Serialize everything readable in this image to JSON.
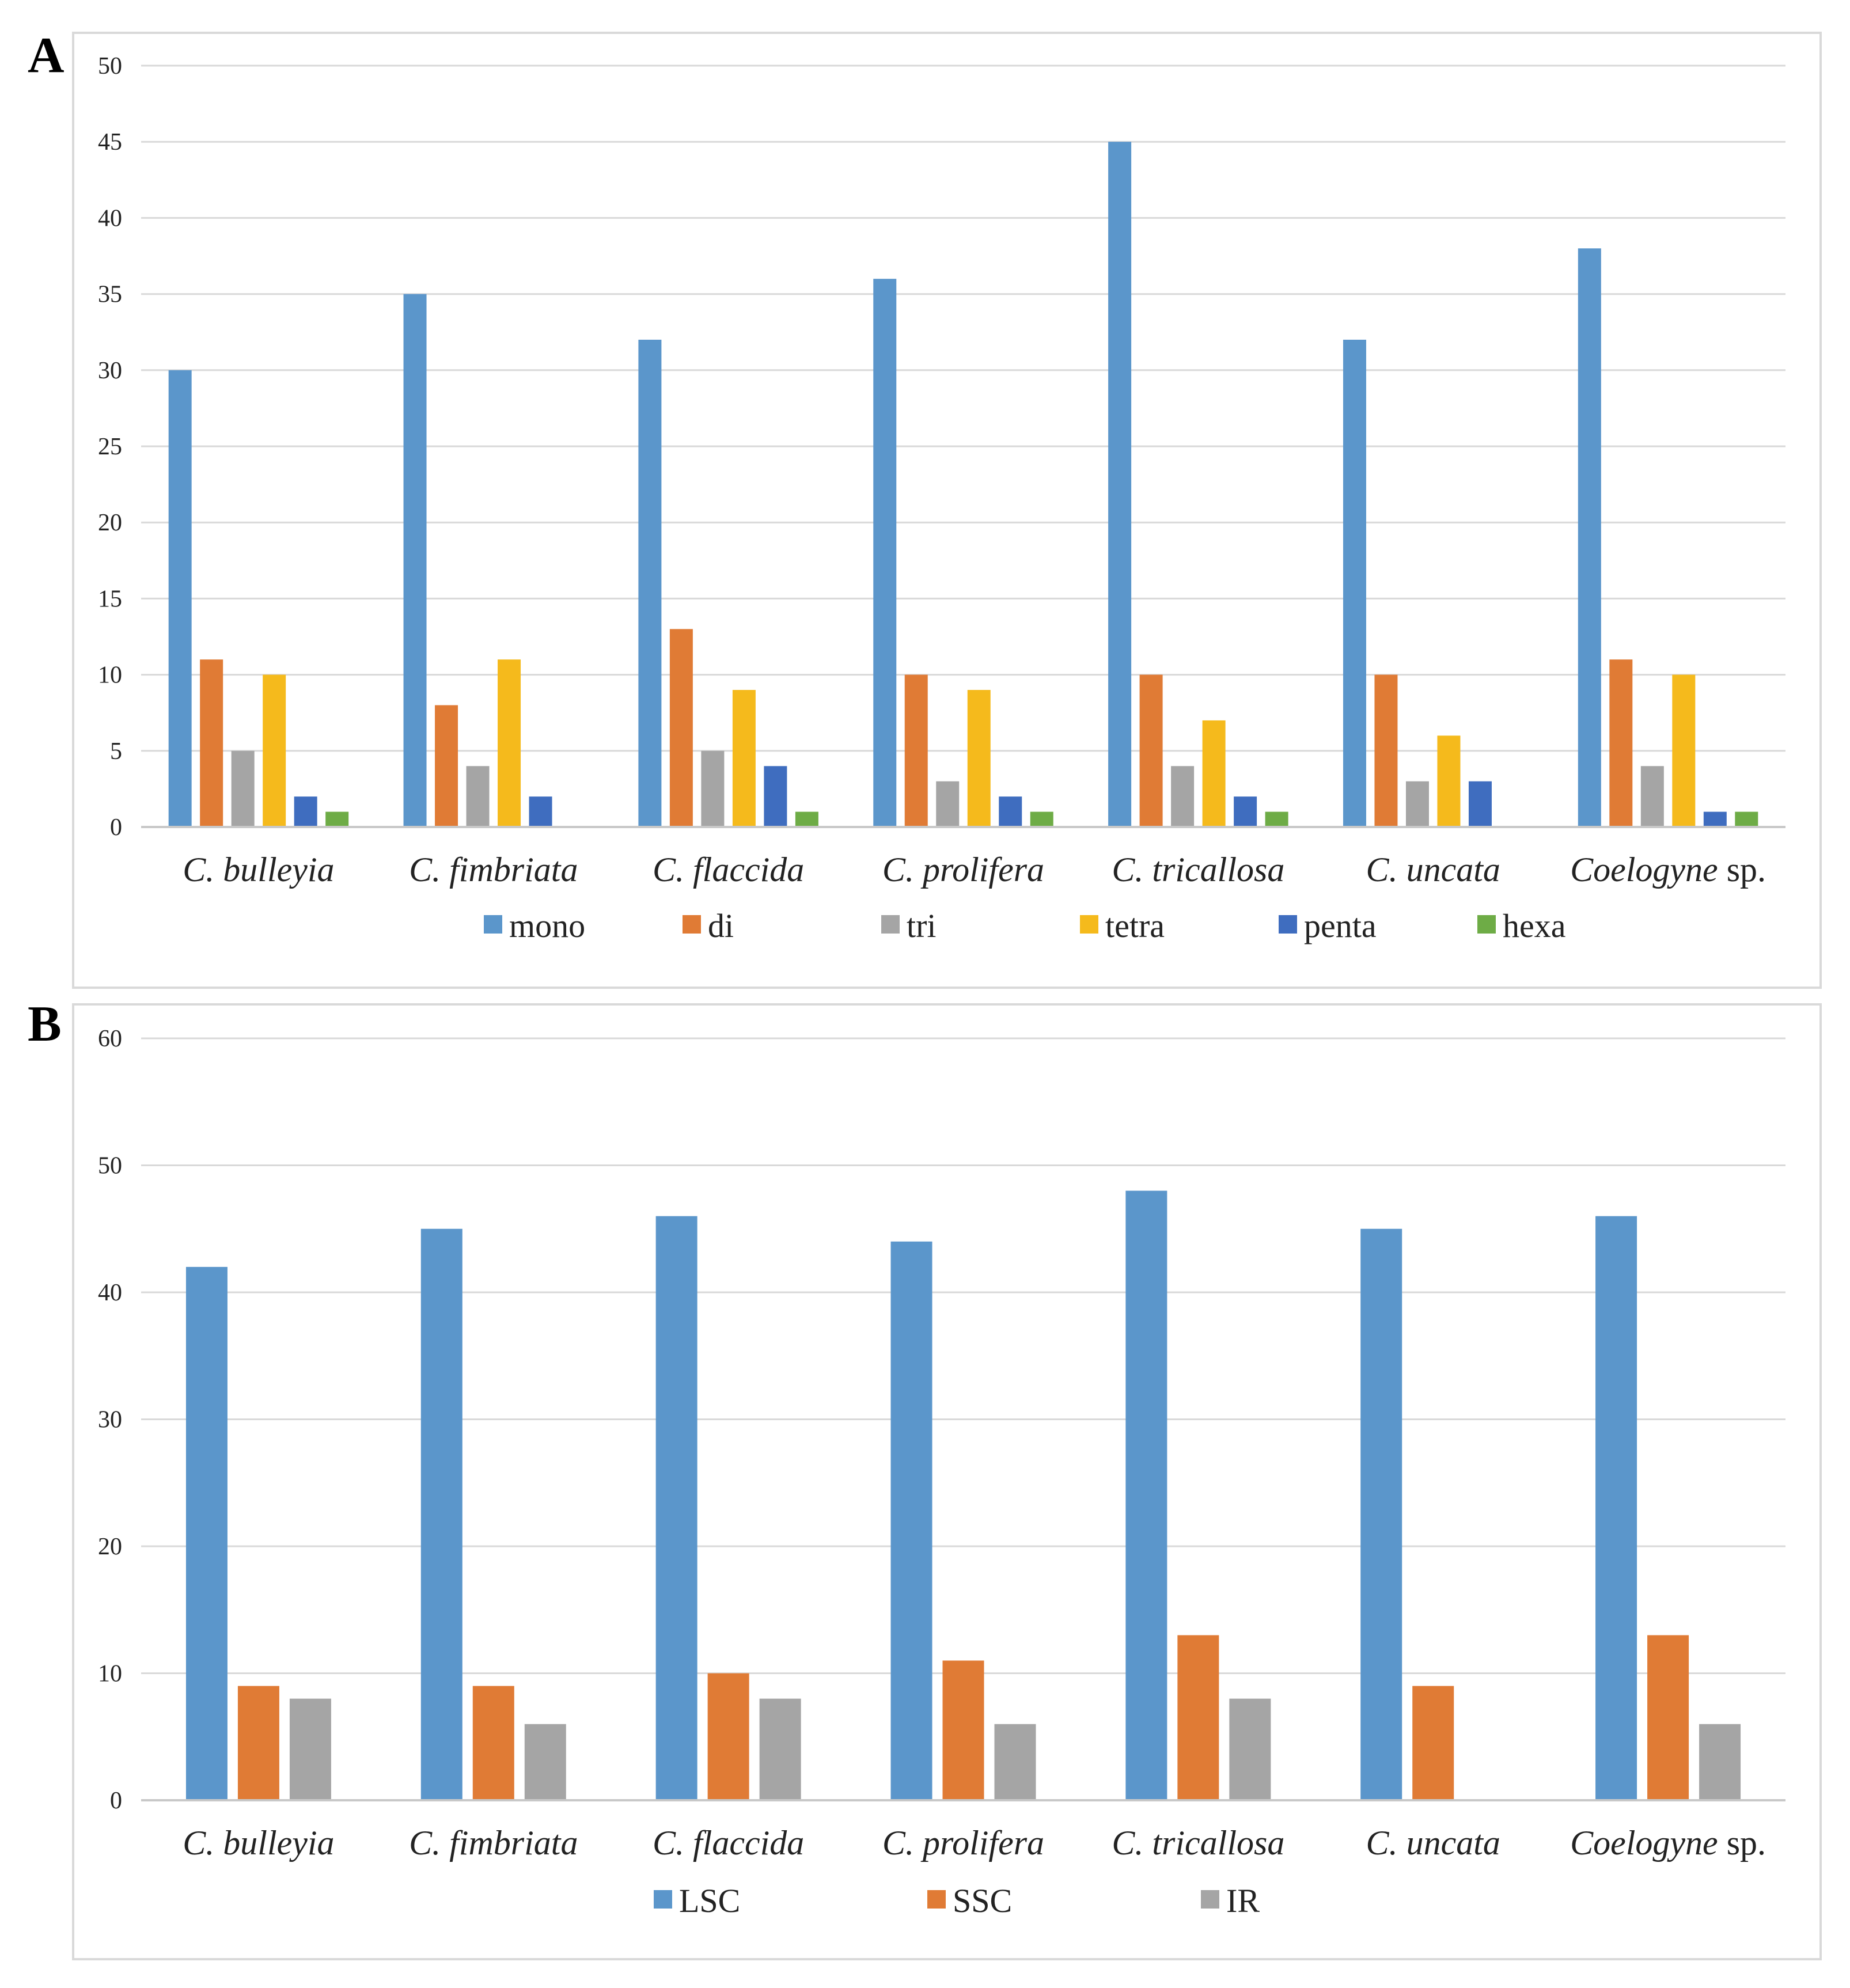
{
  "chart_data": [
    {
      "panel_label": "A",
      "type": "bar",
      "categories": [
        {
          "italic": "C. bulleyia",
          "plain": ""
        },
        {
          "italic": "C. fimbriata",
          "plain": ""
        },
        {
          "italic": "C. flaccida",
          "plain": ""
        },
        {
          "italic": "C. prolifera",
          "plain": ""
        },
        {
          "italic": "C. tricallosa",
          "plain": ""
        },
        {
          "italic": "C. uncata",
          "plain": ""
        },
        {
          "italic": "Coelogyne",
          "plain": " sp."
        }
      ],
      "series": [
        {
          "name": "mono",
          "color": "#5B96CB",
          "values": [
            30,
            35,
            32,
            36,
            45,
            32,
            38
          ]
        },
        {
          "name": "di",
          "color": "#E07B35",
          "values": [
            11,
            8,
            13,
            10,
            10,
            10,
            11
          ]
        },
        {
          "name": "tri",
          "color": "#A5A5A5",
          "values": [
            5,
            4,
            5,
            3,
            4,
            3,
            4
          ]
        },
        {
          "name": "tetra",
          "color": "#F5BA1C",
          "values": [
            10,
            11,
            9,
            9,
            7,
            6,
            10
          ]
        },
        {
          "name": "penta",
          "color": "#3F6DBF",
          "values": [
            2,
            2,
            4,
            2,
            2,
            3,
            1
          ]
        },
        {
          "name": "hexa",
          "color": "#6EAC46",
          "values": [
            1,
            0,
            1,
            1,
            1,
            0,
            1
          ]
        }
      ],
      "y_ticks": [
        0,
        5,
        10,
        15,
        20,
        25,
        30,
        35,
        40,
        45,
        50
      ],
      "ylim": [
        0,
        50
      ],
      "grid": true,
      "legend_position": "bottom",
      "title": "",
      "xlabel": "",
      "ylabel": ""
    },
    {
      "panel_label": "B",
      "type": "bar",
      "categories": [
        {
          "italic": "C. bulleyia",
          "plain": ""
        },
        {
          "italic": "C. fimbriata",
          "plain": ""
        },
        {
          "italic": "C. flaccida",
          "plain": ""
        },
        {
          "italic": "C. prolifera",
          "plain": ""
        },
        {
          "italic": "C. tricallosa",
          "plain": ""
        },
        {
          "italic": "C. uncata",
          "plain": ""
        },
        {
          "italic": "Coelogyne",
          "plain": " sp."
        }
      ],
      "series": [
        {
          "name": "LSC",
          "color": "#5B96CB",
          "values": [
            42,
            45,
            46,
            44,
            48,
            45,
            46
          ]
        },
        {
          "name": "SSC",
          "color": "#E07B35",
          "values": [
            9,
            9,
            10,
            11,
            13,
            9,
            13
          ]
        },
        {
          "name": "IR",
          "color": "#A5A5A5",
          "values": [
            8,
            6,
            8,
            6,
            8,
            0,
            6
          ]
        }
      ],
      "y_ticks": [
        0,
        10,
        20,
        30,
        40,
        50,
        60
      ],
      "ylim": [
        0,
        60
      ],
      "grid": true,
      "legend_position": "bottom",
      "title": "",
      "xlabel": "",
      "ylabel": ""
    }
  ]
}
